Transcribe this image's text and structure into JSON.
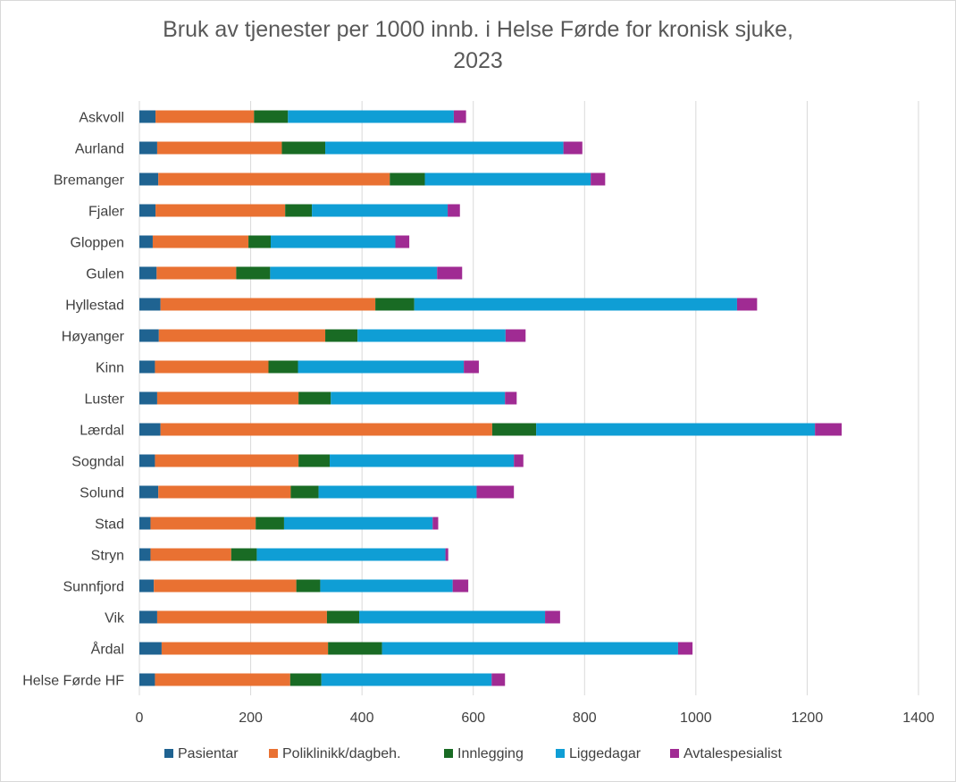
{
  "chart_data": {
    "type": "bar",
    "orientation": "horizontal",
    "stacked": true,
    "title_line1": "Bruk av tjenester per 1000 innb. i Helse Førde for kronisk sjuke,",
    "title_line2": "2023",
    "xlabel": "",
    "ylabel": "",
    "xlim": [
      0,
      1400
    ],
    "xticks": [
      0,
      200,
      400,
      600,
      800,
      1000,
      1200,
      1400
    ],
    "xtick_labels": [
      "0",
      "200",
      "400",
      "600",
      "800",
      "1000",
      "1200",
      "1400"
    ],
    "grid": true,
    "legend_position": "bottom",
    "categories": [
      "Askvoll",
      "Aurland",
      "Bremanger",
      "Fjaler",
      "Gloppen",
      "Gulen",
      "Hyllestad",
      "Høyanger",
      "Kinn",
      "Luster",
      "Lærdal",
      "Sogndal",
      "Solund",
      "Stad",
      "Stryn",
      "Sunnfjord",
      "Vik",
      "Årdal",
      "Helse Førde HF"
    ],
    "series": [
      {
        "name": "Pasientar",
        "color": "#1f6391",
        "values": [
          29,
          32,
          34,
          29,
          24,
          31,
          38,
          35,
          28,
          32,
          38,
          28,
          34,
          20,
          20,
          26,
          32,
          40,
          28
        ]
      },
      {
        "name": "Poliklinikk/dagbeh.",
        "color": "#e97132",
        "values": [
          177,
          224,
          416,
          233,
          172,
          143,
          386,
          299,
          204,
          254,
          596,
          258,
          238,
          189,
          145,
          256,
          305,
          299,
          243
        ]
      },
      {
        "name": "Innlegging",
        "color": "#196b24",
        "values": [
          61,
          78,
          63,
          48,
          40,
          61,
          70,
          58,
          53,
          58,
          79,
          56,
          50,
          51,
          46,
          43,
          58,
          97,
          56
        ]
      },
      {
        "name": "Liggedagar",
        "color": "#0f9ed5",
        "values": [
          298,
          428,
          298,
          244,
          224,
          300,
          580,
          266,
          298,
          313,
          501,
          331,
          284,
          267,
          339,
          238,
          334,
          532,
          306
        ]
      },
      {
        "name": "Avtalespesialist",
        "color": "#a02b93",
        "values": [
          22,
          34,
          26,
          22,
          25,
          45,
          36,
          36,
          27,
          21,
          48,
          17,
          67,
          10,
          5,
          28,
          27,
          26,
          24
        ]
      }
    ]
  }
}
